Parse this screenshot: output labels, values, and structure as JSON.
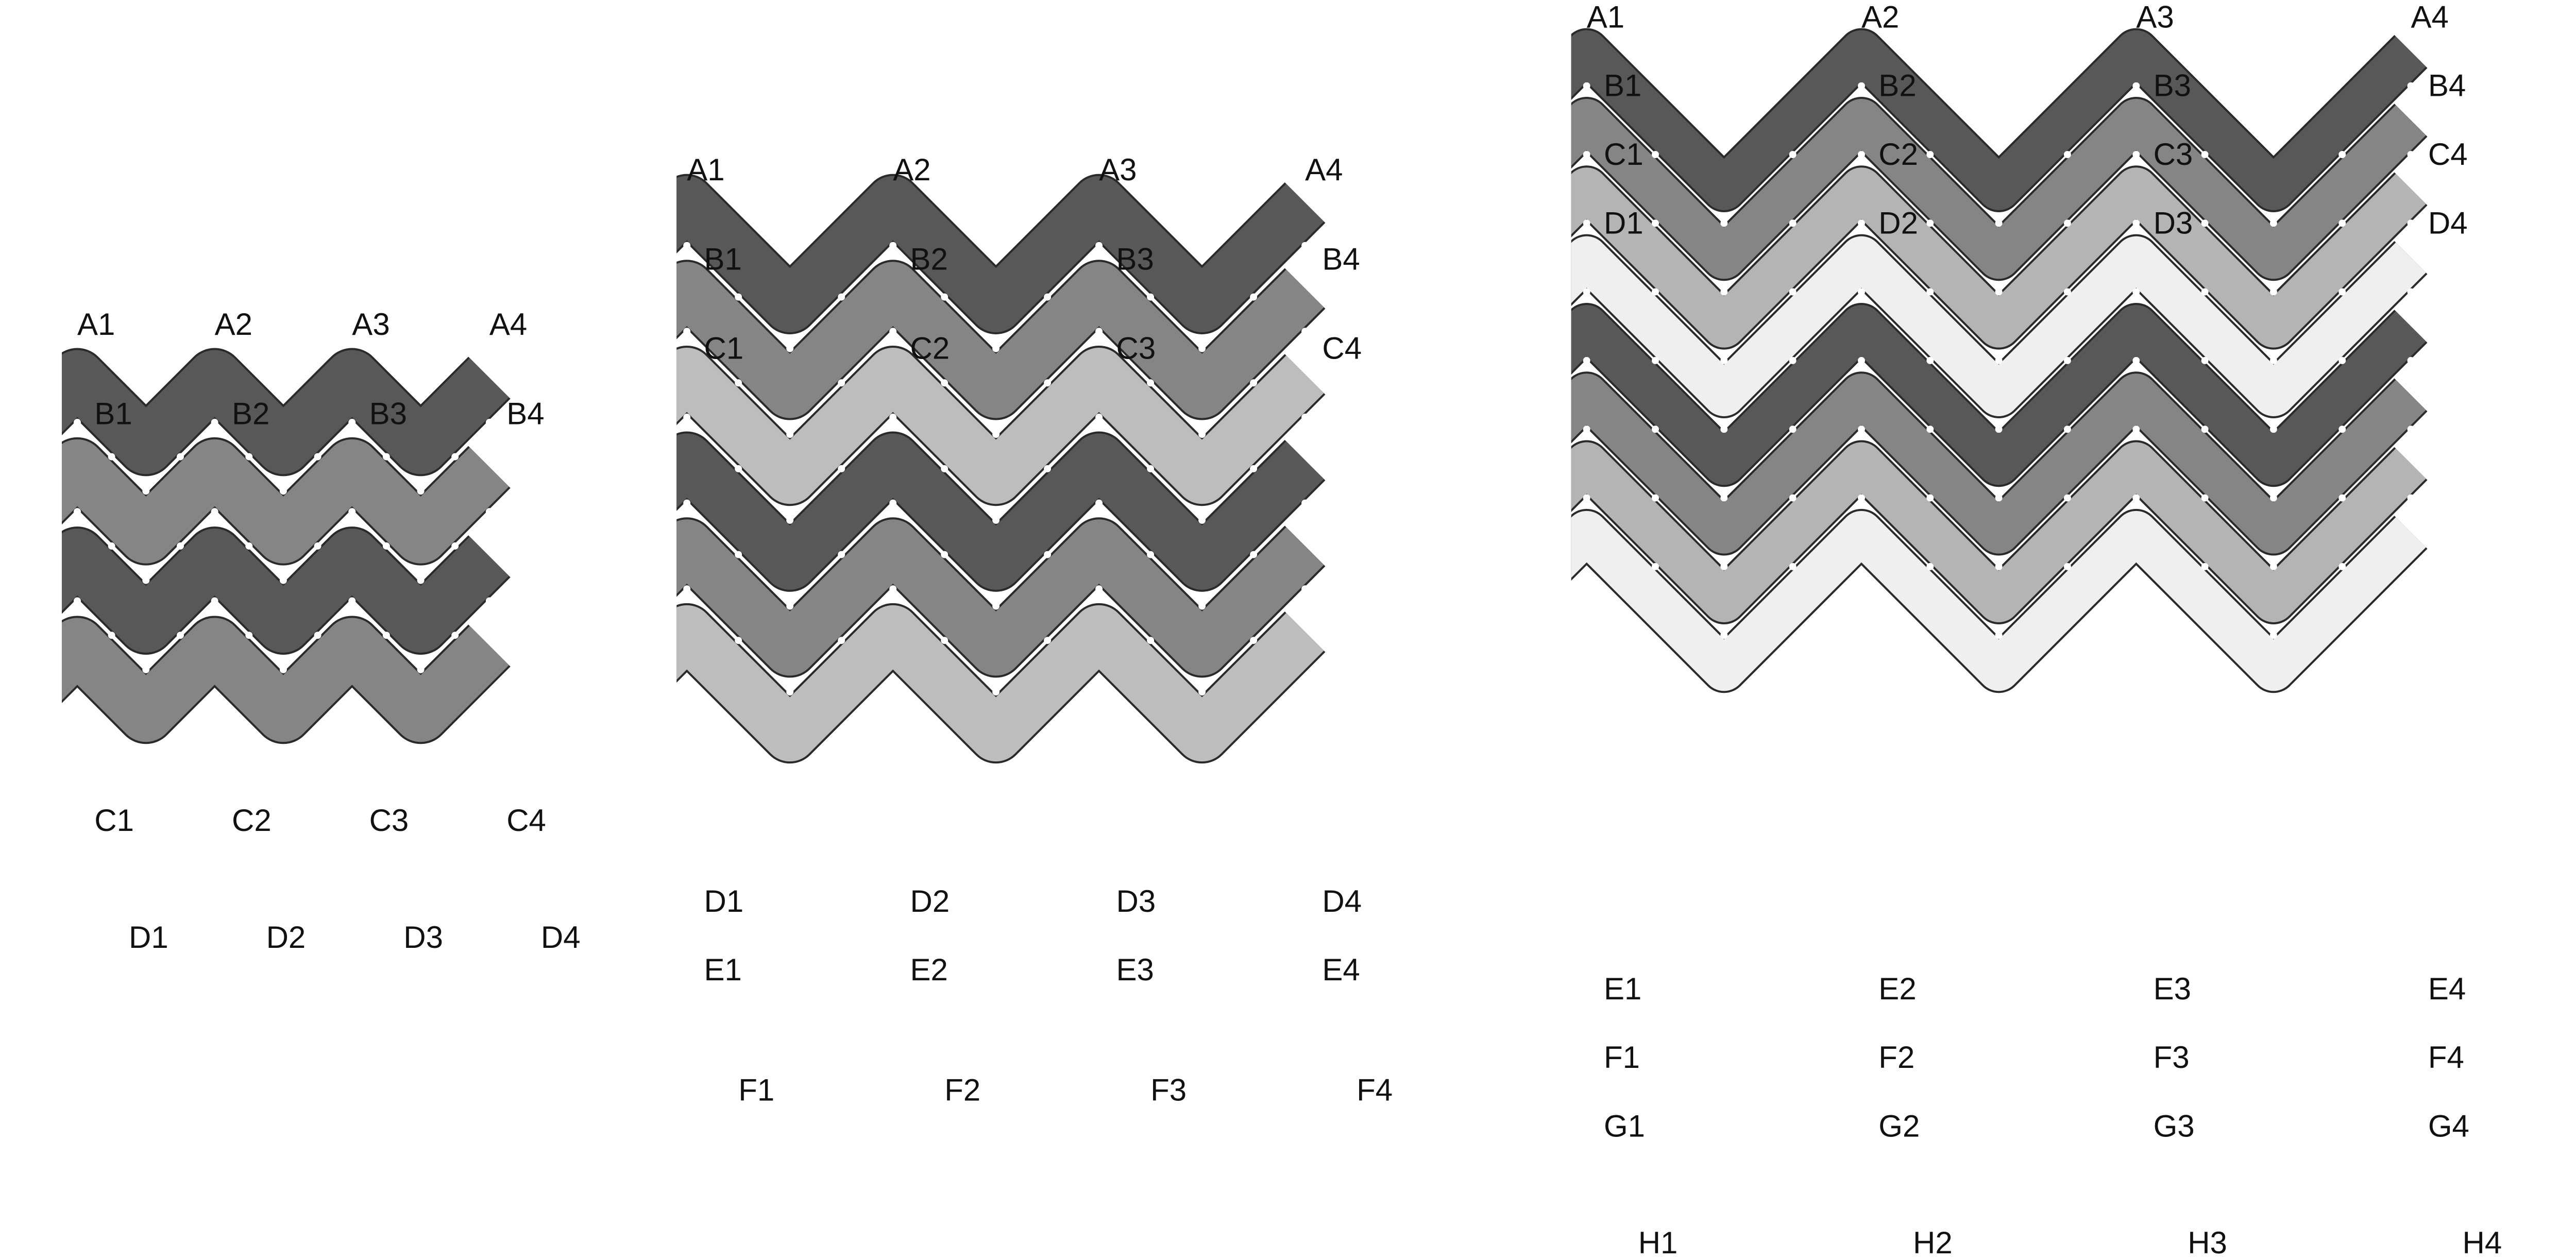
{
  "colors": {
    "background": "#ffffff",
    "strand_outline": "#2a2a2a",
    "label_text": "#111111",
    "gap_dot": "#ffffff"
  },
  "panels": [
    {
      "top_labels": [
        "A1",
        "A2",
        "A3",
        "A4"
      ],
      "rows": [
        {
          "labels": [
            "B1",
            "B2",
            "B3",
            "B4"
          ]
        },
        {
          "labels": [
            "C1",
            "C2",
            "C3",
            "C4"
          ]
        },
        {
          "labels": [
            "D1",
            "D2",
            "D3",
            "D4"
          ]
        }
      ],
      "strand_colors": [
        "#585858",
        "#858585",
        "#585858",
        "#858585"
      ]
    },
    {
      "top_labels": [
        "A1",
        "A2",
        "A3",
        "A4"
      ],
      "rows": [
        {
          "labels": [
            "B1",
            "B2",
            "B3",
            "B4"
          ]
        },
        {
          "labels": [
            "C1",
            "C2",
            "C3",
            "C4"
          ]
        },
        {
          "labels": [
            "D1",
            "D2",
            "D3",
            "D4"
          ]
        },
        {
          "labels": [
            "E1",
            "E2",
            "E3",
            "E4"
          ]
        },
        {
          "labels": [
            "F1",
            "F2",
            "F3",
            "F4"
          ]
        }
      ],
      "strand_colors": [
        "#585858",
        "#858585",
        "#bdbdbd",
        "#585858",
        "#858585",
        "#bdbdbd"
      ]
    },
    {
      "top_labels": [
        "A1",
        "A2",
        "A3",
        "A4"
      ],
      "rows": [
        {
          "labels": [
            "B1",
            "B2",
            "B3",
            "B4"
          ]
        },
        {
          "labels": [
            "C1",
            "C2",
            "C3",
            "C4"
          ]
        },
        {
          "labels": [
            "D1",
            "D2",
            "D3",
            "D4"
          ]
        },
        {
          "labels": [
            "E1",
            "E2",
            "E3",
            "E4"
          ]
        },
        {
          "labels": [
            "F1",
            "F2",
            "F3",
            "F4"
          ]
        },
        {
          "labels": [
            "G1",
            "G2",
            "G3",
            "G4"
          ]
        },
        {
          "labels": [
            "H1",
            "H2",
            "H3",
            "H4"
          ]
        }
      ],
      "strand_colors": [
        "#585858",
        "#858585",
        "#b4b4b4",
        "#efefef",
        "#585858",
        "#858585",
        "#b4b4b4",
        "#efefef"
      ]
    }
  ]
}
